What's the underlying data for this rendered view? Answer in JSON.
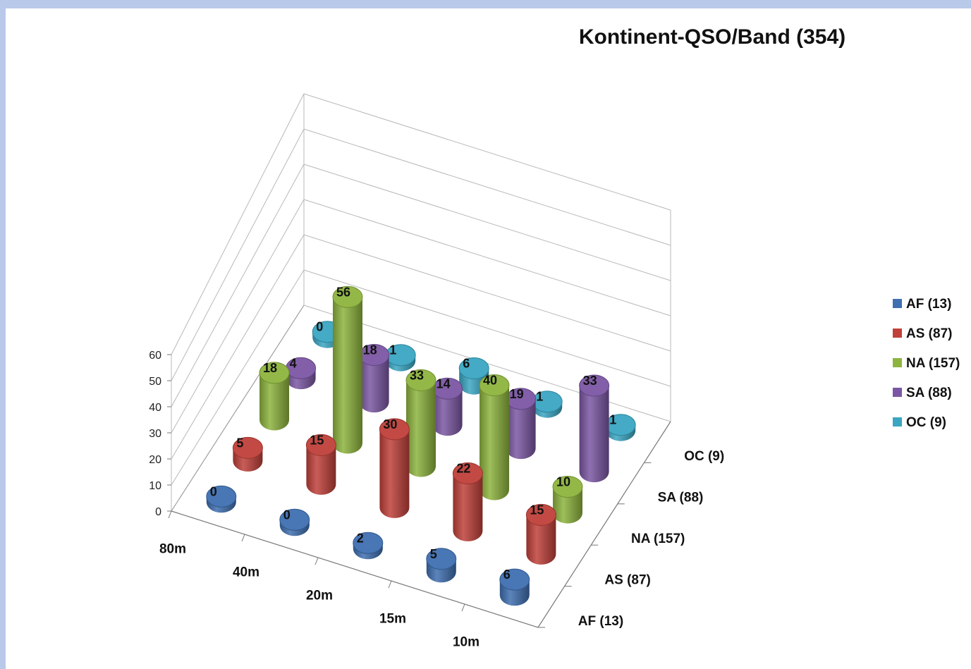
{
  "chart_data": {
    "type": "bar",
    "subtype": "3d-cylinder",
    "title": "Kontinent-QSO/Band (354)",
    "categories": [
      "80m",
      "40m",
      "20m",
      "15m",
      "10m"
    ],
    "series": [
      {
        "name": "AF (13)",
        "color": "#3f6fb0",
        "values": [
          0,
          0,
          2,
          5,
          6
        ]
      },
      {
        "name": "AS (87)",
        "color": "#c0403a",
        "values": [
          5,
          15,
          30,
          22,
          15
        ]
      },
      {
        "name": "NA (157)",
        "color": "#8db43e",
        "values": [
          18,
          56,
          33,
          40,
          10
        ]
      },
      {
        "name": "SA (88)",
        "color": "#7b57a3",
        "values": [
          4,
          18,
          14,
          19,
          33
        ]
      },
      {
        "name": "OC (9)",
        "color": "#3aa6c2",
        "values": [
          0,
          1,
          6,
          1,
          1
        ]
      }
    ],
    "z_ticks": [
      "0",
      "10",
      "20",
      "30",
      "40",
      "50",
      "60"
    ],
    "zlim": [
      0,
      60
    ],
    "grid": true,
    "legend_position": "right"
  }
}
